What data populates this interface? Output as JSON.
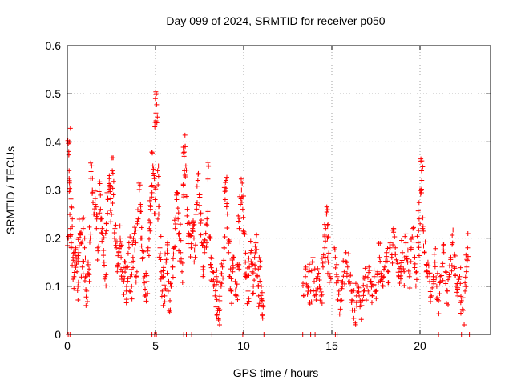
{
  "chart_data": {
    "type": "scatter",
    "title": "Day 099 of 2024, SRMTID for receiver p050",
    "xlabel": "GPS time / hours",
    "ylabel": "SRMTID / TECUs",
    "xlim": [
      0,
      24
    ],
    "ylim": [
      0,
      0.6
    ],
    "xticks": [
      0,
      5,
      10,
      15,
      20
    ],
    "yticks": [
      0,
      0.1,
      0.2,
      0.3,
      0.4,
      0.5,
      0.6
    ],
    "xtick_labels": [
      "0",
      "5",
      "10",
      "15",
      "20"
    ],
    "ytick_labels": [
      "0",
      "0.1",
      "0.2",
      "0.3",
      "0.4",
      "0.5",
      "0.6"
    ],
    "grid": true,
    "marker": "+",
    "color": "#ff0000",
    "series": [
      {
        "name": "SRMTID",
        "points": [
          [
            0.05,
            0.2
          ],
          [
            0.08,
            0.38
          ],
          [
            0.1,
            0.34
          ],
          [
            0.12,
            0.4
          ],
          [
            0.15,
            0.3
          ],
          [
            0.18,
            0.22
          ],
          [
            0.22,
            0.19
          ],
          [
            0.28,
            0.24
          ],
          [
            0.32,
            0.16
          ],
          [
            0.38,
            0.12
          ],
          [
            0.42,
            0.15
          ],
          [
            0.48,
            0.18
          ],
          [
            0.55,
            0.13
          ],
          [
            0.6,
            0.1
          ],
          [
            0.65,
            0.17
          ],
          [
            0.72,
            0.21
          ],
          [
            0.78,
            0.19
          ],
          [
            0.85,
            0.14
          ],
          [
            0.9,
            0.22
          ],
          [
            0.98,
            0.18
          ],
          [
            1.05,
            0.12
          ],
          [
            1.1,
            0.09
          ],
          [
            1.18,
            0.15
          ],
          [
            1.25,
            0.11
          ],
          [
            1.3,
            0.2
          ],
          [
            1.38,
            0.35
          ],
          [
            1.42,
            0.3
          ],
          [
            1.5,
            0.25
          ],
          [
            1.58,
            0.27
          ],
          [
            1.65,
            0.22
          ],
          [
            1.72,
            0.18
          ],
          [
            1.8,
            0.3
          ],
          [
            1.88,
            0.26
          ],
          [
            1.95,
            0.24
          ],
          [
            2.02,
            0.2
          ],
          [
            2.08,
            0.15
          ],
          [
            2.15,
            0.12
          ],
          [
            2.22,
            0.23
          ],
          [
            2.3,
            0.28
          ],
          [
            2.38,
            0.33
          ],
          [
            2.42,
            0.31
          ],
          [
            2.48,
            0.25
          ],
          [
            2.55,
            0.34
          ],
          [
            2.62,
            0.29
          ],
          [
            2.7,
            0.22
          ],
          [
            2.78,
            0.18
          ],
          [
            2.85,
            0.14
          ],
          [
            2.92,
            0.17
          ],
          [
            3.0,
            0.2
          ],
          [
            3.05,
            0.16
          ],
          [
            3.12,
            0.13
          ],
          [
            3.2,
            0.11
          ],
          [
            3.28,
            0.15
          ],
          [
            3.35,
            0.09
          ],
          [
            3.42,
            0.14
          ],
          [
            3.5,
            0.18
          ],
          [
            3.58,
            0.12
          ],
          [
            3.65,
            0.1
          ],
          [
            3.72,
            0.16
          ],
          [
            3.8,
            0.21
          ],
          [
            3.88,
            0.19
          ],
          [
            3.95,
            0.13
          ],
          [
            4.02,
            0.24
          ],
          [
            4.08,
            0.3
          ],
          [
            4.15,
            0.27
          ],
          [
            4.22,
            0.2
          ],
          [
            4.3,
            0.16
          ],
          [
            4.38,
            0.12
          ],
          [
            4.45,
            0.08
          ],
          [
            4.52,
            0.11
          ],
          [
            4.58,
            0.18
          ],
          [
            4.65,
            0.22
          ],
          [
            4.72,
            0.26
          ],
          [
            4.8,
            0.31
          ],
          [
            4.85,
            0.35
          ],
          [
            4.92,
            0.33
          ],
          [
            4.98,
            0.28
          ],
          [
            5.02,
            0.46
          ],
          [
            5.05,
            0.5
          ],
          [
            5.08,
            0.44
          ],
          [
            5.12,
            0.34
          ],
          [
            5.18,
            0.25
          ],
          [
            5.25,
            0.18
          ],
          [
            5.32,
            0.13
          ],
          [
            5.38,
            0.09
          ],
          [
            5.45,
            0.12
          ],
          [
            5.52,
            0.08
          ],
          [
            5.6,
            0.15
          ],
          [
            5.68,
            0.19
          ],
          [
            5.75,
            0.11
          ],
          [
            5.82,
            0.07
          ],
          [
            5.9,
            0.1
          ],
          [
            5.98,
            0.14
          ],
          [
            6.05,
            0.18
          ],
          [
            6.12,
            0.22
          ],
          [
            6.2,
            0.28
          ],
          [
            6.28,
            0.24
          ],
          [
            6.35,
            0.2
          ],
          [
            6.42,
            0.17
          ],
          [
            6.5,
            0.13
          ],
          [
            6.58,
            0.31
          ],
          [
            6.62,
            0.37
          ],
          [
            6.68,
            0.39
          ],
          [
            6.72,
            0.35
          ],
          [
            6.8,
            0.26
          ],
          [
            6.88,
            0.21
          ],
          [
            6.95,
            0.23
          ],
          [
            7.02,
            0.18
          ],
          [
            7.1,
            0.22
          ],
          [
            7.18,
            0.2
          ],
          [
            7.25,
            0.16
          ],
          [
            7.32,
            0.27
          ],
          [
            7.4,
            0.32
          ],
          [
            7.48,
            0.29
          ],
          [
            7.55,
            0.25
          ],
          [
            7.62,
            0.19
          ],
          [
            7.7,
            0.14
          ],
          [
            7.78,
            0.17
          ],
          [
            7.85,
            0.21
          ],
          [
            7.92,
            0.24
          ],
          [
            8.0,
            0.35
          ],
          [
            8.08,
            0.2
          ],
          [
            8.15,
            0.16
          ],
          [
            8.22,
            0.13
          ],
          [
            8.3,
            0.1
          ],
          [
            8.38,
            0.08
          ],
          [
            8.45,
            0.12
          ],
          [
            8.52,
            0.05
          ],
          [
            8.58,
            0.03
          ],
          [
            8.65,
            0.07
          ],
          [
            8.72,
            0.1
          ],
          [
            8.8,
            0.14
          ],
          [
            8.88,
            0.18
          ],
          [
            8.95,
            0.28
          ],
          [
            9.0,
            0.32
          ],
          [
            9.08,
            0.25
          ],
          [
            9.15,
            0.17
          ],
          [
            9.22,
            0.12
          ],
          [
            9.3,
            0.09
          ],
          [
            9.38,
            0.13
          ],
          [
            9.45,
            0.16
          ],
          [
            9.52,
            0.11
          ],
          [
            9.6,
            0.08
          ],
          [
            9.68,
            0.14
          ],
          [
            9.75,
            0.22
          ],
          [
            9.82,
            0.27
          ],
          [
            9.88,
            0.3
          ],
          [
            9.95,
            0.26
          ],
          [
            10.02,
            0.21
          ],
          [
            10.1,
            0.15
          ],
          [
            10.18,
            0.12
          ],
          [
            10.25,
            0.09
          ],
          [
            10.32,
            0.14
          ],
          [
            10.4,
            0.17
          ],
          [
            10.48,
            0.13
          ],
          [
            10.55,
            0.1
          ],
          [
            10.62,
            0.16
          ],
          [
            10.7,
            0.19
          ],
          [
            10.78,
            0.12
          ],
          [
            10.85,
            0.08
          ],
          [
            10.92,
            0.14
          ],
          [
            11.0,
            0.1
          ],
          [
            11.05,
            0.07
          ],
          [
            11.1,
            0.06
          ],
          [
            13.4,
            0.08
          ],
          [
            13.5,
            0.12
          ],
          [
            13.6,
            0.1
          ],
          [
            13.7,
            0.13
          ],
          [
            13.8,
            0.09
          ],
          [
            13.9,
            0.15
          ],
          [
            14.0,
            0.11
          ],
          [
            14.1,
            0.09
          ],
          [
            14.2,
            0.12
          ],
          [
            14.3,
            0.1
          ],
          [
            14.4,
            0.08
          ],
          [
            14.5,
            0.14
          ],
          [
            14.6,
            0.18
          ],
          [
            14.65,
            0.22
          ],
          [
            14.7,
            0.25
          ],
          [
            14.75,
            0.2
          ],
          [
            14.8,
            0.15
          ],
          [
            14.9,
            0.12
          ],
          [
            15.2,
            0.16
          ],
          [
            15.3,
            0.12
          ],
          [
            15.4,
            0.09
          ],
          [
            15.5,
            0.07
          ],
          [
            15.6,
            0.1
          ],
          [
            15.7,
            0.13
          ],
          [
            15.8,
            0.17
          ],
          [
            15.9,
            0.14
          ],
          [
            16.0,
            0.11
          ],
          [
            16.1,
            0.09
          ],
          [
            16.2,
            0.07
          ],
          [
            16.3,
            0.05
          ],
          [
            16.4,
            0.08
          ],
          [
            16.5,
            0.1
          ],
          [
            16.6,
            0.07
          ],
          [
            16.7,
            0.06
          ],
          [
            16.8,
            0.09
          ],
          [
            16.9,
            0.12
          ],
          [
            17.0,
            0.1
          ],
          [
            17.1,
            0.14
          ],
          [
            17.2,
            0.11
          ],
          [
            17.3,
            0.08
          ],
          [
            17.4,
            0.12
          ],
          [
            17.5,
            0.09
          ],
          [
            17.6,
            0.13
          ],
          [
            17.7,
            0.16
          ],
          [
            17.8,
            0.12
          ],
          [
            17.9,
            0.1
          ],
          [
            18.0,
            0.14
          ],
          [
            18.1,
            0.17
          ],
          [
            18.2,
            0.13
          ],
          [
            18.3,
            0.19
          ],
          [
            18.4,
            0.16
          ],
          [
            18.5,
            0.22
          ],
          [
            18.6,
            0.18
          ],
          [
            18.7,
            0.15
          ],
          [
            18.8,
            0.12
          ],
          [
            18.9,
            0.14
          ],
          [
            19.0,
            0.17
          ],
          [
            19.1,
            0.13
          ],
          [
            19.2,
            0.19
          ],
          [
            19.3,
            0.15
          ],
          [
            19.4,
            0.12
          ],
          [
            19.5,
            0.18
          ],
          [
            19.6,
            0.22
          ],
          [
            19.7,
            0.16
          ],
          [
            19.8,
            0.13
          ],
          [
            19.9,
            0.19
          ],
          [
            19.95,
            0.24
          ],
          [
            20.0,
            0.3
          ],
          [
            20.05,
            0.36
          ],
          [
            20.1,
            0.32
          ],
          [
            20.15,
            0.22
          ],
          [
            20.25,
            0.17
          ],
          [
            20.35,
            0.13
          ],
          [
            20.45,
            0.15
          ],
          [
            20.55,
            0.11
          ],
          [
            20.65,
            0.08
          ],
          [
            20.75,
            0.12
          ],
          [
            20.85,
            0.15
          ],
          [
            20.95,
            0.1
          ],
          [
            21.05,
            0.07
          ],
          [
            21.15,
            0.11
          ],
          [
            21.25,
            0.14
          ],
          [
            21.35,
            0.17
          ],
          [
            21.45,
            0.13
          ],
          [
            21.55,
            0.09
          ],
          [
            21.65,
            0.12
          ],
          [
            21.75,
            0.16
          ],
          [
            21.85,
            0.19
          ],
          [
            21.95,
            0.14
          ],
          [
            22.05,
            0.1
          ],
          [
            22.15,
            0.08
          ],
          [
            22.25,
            0.12
          ],
          [
            22.35,
            0.07
          ],
          [
            22.45,
            0.05
          ],
          [
            22.55,
            0.09
          ],
          [
            22.65,
            0.14
          ],
          [
            22.7,
            0.18
          ]
        ]
      }
    ],
    "zero_marks_x": [
      0.05,
      0.15,
      4.8,
      4.95,
      5.05,
      6.6,
      6.75,
      7.05,
      8.2,
      9.95,
      11.15,
      13.35,
      13.8,
      14.05,
      15.2,
      15.3,
      21.05,
      22.35,
      22.8
    ]
  }
}
